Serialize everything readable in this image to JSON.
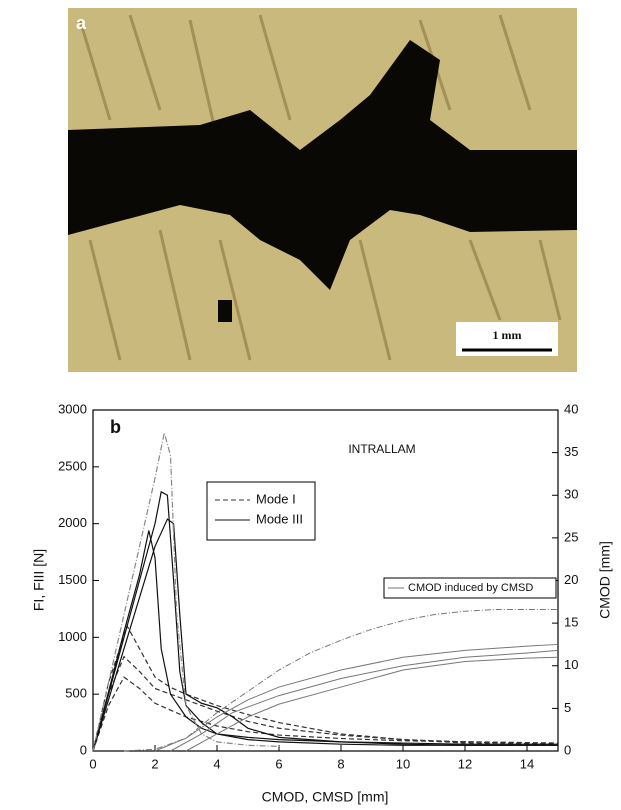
{
  "photo": {
    "panel_label": "a",
    "scale_bar": "1 mm"
  },
  "chart_data": {
    "type": "line",
    "panel_label": "b",
    "annotation": "INTRALLAM",
    "xlabel": "CMOD, CMSD [mm]",
    "ylabel": "FI, FIII [N]",
    "y2label": "CMOD [mm]",
    "xlim": [
      0,
      15
    ],
    "xticks": [
      0,
      2,
      4,
      6,
      8,
      10,
      12,
      14
    ],
    "ylim": [
      0,
      3000
    ],
    "yticks": [
      0,
      500,
      1000,
      1500,
      2000,
      2500,
      3000
    ],
    "y2lim": [
      0,
      40
    ],
    "y2ticks": [
      0,
      5,
      10,
      15,
      20,
      25,
      30,
      35,
      40
    ],
    "series": [
      {
        "name": "Mode I",
        "color": "#333333",
        "dash": "dashed",
        "x": [
          0,
          0.5,
          1.1,
          1.5,
          2,
          2.5,
          3,
          4,
          5,
          6,
          8,
          10,
          12,
          15
        ],
        "values": [
          0,
          600,
          1100,
          900,
          650,
          560,
          500,
          400,
          320,
          250,
          150,
          100,
          70,
          50
        ]
      },
      {
        "color": "#333333",
        "dash": "dashed",
        "x": [
          0,
          0.5,
          1,
          1.5,
          2,
          3,
          4,
          5,
          6,
          8,
          10,
          12,
          15
        ],
        "values": [
          0,
          500,
          830,
          700,
          550,
          450,
          350,
          260,
          200,
          140,
          100,
          80,
          60
        ]
      },
      {
        "color": "#333333",
        "dash": "dashed",
        "x": [
          0,
          0.5,
          1,
          1.5,
          2,
          3,
          4,
          5,
          6,
          8,
          10,
          15
        ],
        "values": [
          0,
          400,
          650,
          550,
          420,
          300,
          220,
          170,
          140,
          110,
          90,
          70
        ]
      },
      {
        "name": "Mode III",
        "color": "#111111",
        "dash": "solid",
        "x": [
          0,
          0.5,
          1,
          1.5,
          2,
          2.2,
          2.4,
          2.6,
          2.8,
          3,
          3.5,
          4,
          5,
          6,
          8,
          10,
          12,
          15
        ],
        "values": [
          0,
          500,
          1000,
          1500,
          2000,
          2280,
          2250,
          1500,
          700,
          400,
          250,
          150,
          100,
          80,
          60,
          50,
          50,
          50
        ]
      },
      {
        "color": "#111111",
        "dash": "solid",
        "x": [
          0,
          0.5,
          1,
          1.5,
          2,
          2.4,
          2.6,
          2.8,
          3,
          3.5,
          4,
          4.5,
          5,
          6,
          8,
          10,
          12,
          15
        ],
        "values": [
          0,
          450,
          900,
          1350,
          1800,
          2040,
          2000,
          1200,
          500,
          420,
          380,
          300,
          200,
          120,
          80,
          60,
          50,
          50
        ]
      },
      {
        "color": "#111111",
        "dash": "solid",
        "x": [
          0,
          0.5,
          1,
          1.5,
          1.8,
          2,
          2.2,
          2.5,
          3,
          3.5,
          4,
          5,
          6,
          8,
          10,
          12,
          15
        ],
        "values": [
          0,
          520,
          1050,
          1550,
          1940,
          1700,
          900,
          500,
          300,
          200,
          150,
          120,
          100,
          80,
          70,
          60,
          60
        ]
      },
      {
        "color": "#888888",
        "dash": "dashdot",
        "x": [
          0,
          0.5,
          1,
          1.5,
          2,
          2.3,
          2.5,
          2.7,
          3,
          3.5,
          4,
          5,
          6
        ],
        "values": [
          0,
          600,
          1200,
          1800,
          2400,
          2800,
          2600,
          1200,
          400,
          150,
          80,
          50,
          40
        ]
      },
      {
        "name": "CMOD induced by CMSD",
        "color": "#777777",
        "dash": "dashdot",
        "axis": "y2",
        "x": [
          1,
          2,
          3,
          4,
          5,
          6,
          7,
          8,
          9,
          10,
          11,
          12,
          13,
          14,
          15
        ],
        "values": [
          0,
          0.2,
          1.5,
          4.5,
          7,
          9.5,
          11.5,
          13,
          14.3,
          15.3,
          16,
          16.4,
          16.6,
          16.6,
          16.6
        ]
      },
      {
        "color": "#777777",
        "dash": "solid",
        "axis": "y2",
        "x": [
          2,
          3,
          4,
          5,
          6,
          8,
          10,
          12,
          14,
          15
        ],
        "values": [
          0,
          1.5,
          4,
          6,
          7.5,
          9.5,
          11,
          11.8,
          12.3,
          12.5
        ]
      },
      {
        "color": "#777777",
        "dash": "solid",
        "axis": "y2",
        "x": [
          2.5,
          3.5,
          4.5,
          6,
          8,
          10,
          12,
          14,
          15
        ],
        "values": [
          0,
          2,
          4.5,
          6.5,
          8.5,
          10,
          11,
          11.5,
          11.8
        ]
      },
      {
        "color": "#777777",
        "dash": "solid",
        "axis": "y2",
        "x": [
          3,
          4,
          5,
          6,
          8,
          10,
          12,
          14,
          15
        ],
        "values": [
          0,
          2,
          4,
          5.5,
          7.5,
          9.5,
          10.5,
          10.9,
          11
        ]
      }
    ]
  }
}
